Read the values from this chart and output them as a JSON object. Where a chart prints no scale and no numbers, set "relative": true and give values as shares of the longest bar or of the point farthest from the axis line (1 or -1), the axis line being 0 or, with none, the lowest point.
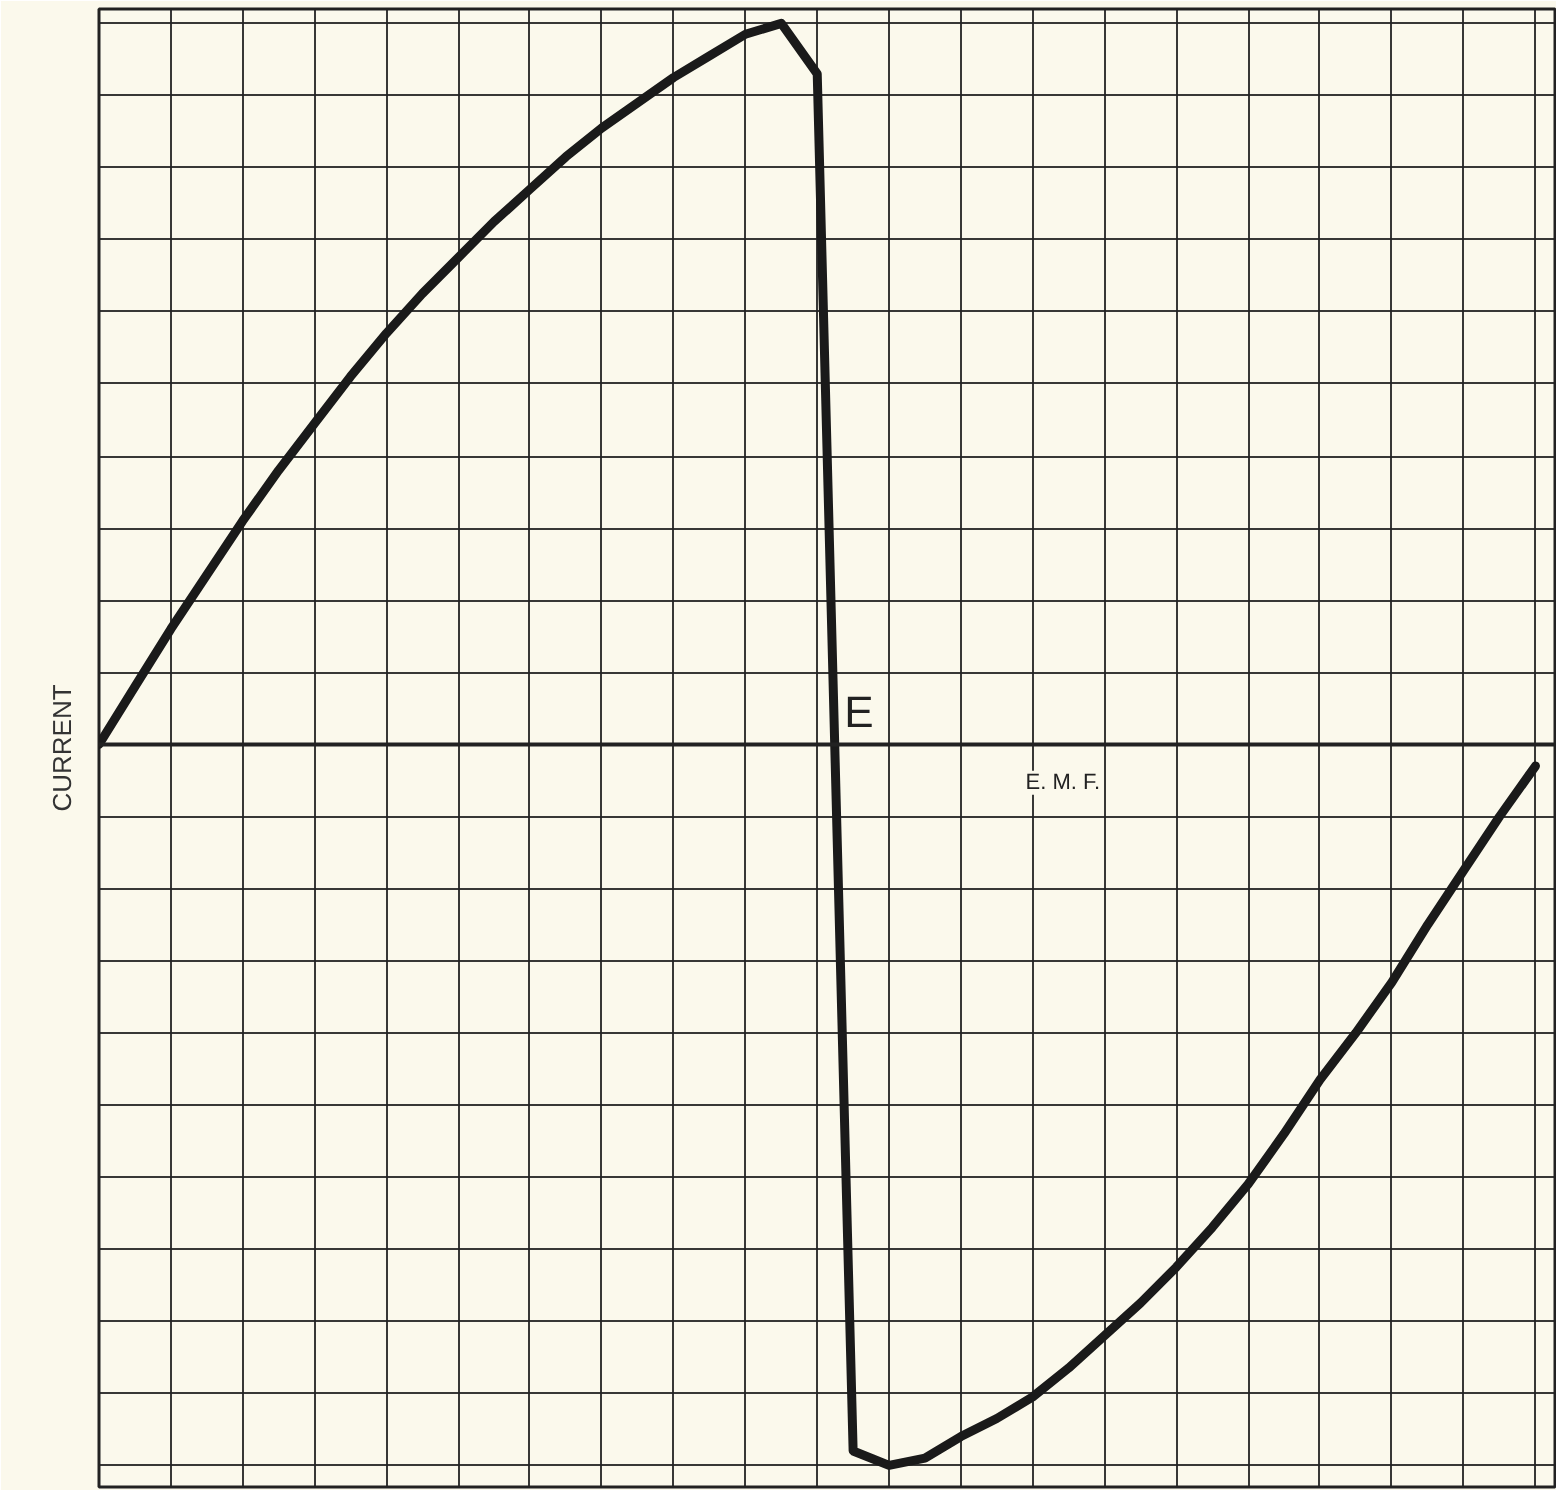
{
  "chart_data": {
    "type": "line",
    "relative": true,
    "ylabel": "CURRENT",
    "annotations": [
      "E",
      "E. M. F."
    ],
    "grid": true,
    "categories": [
      null,
      null,
      null,
      null,
      null,
      null,
      null,
      null,
      null,
      null,
      null,
      null,
      null,
      null,
      null,
      null,
      null,
      null,
      null,
      null,
      null,
      null,
      null,
      null,
      null,
      null,
      null,
      null,
      null,
      null,
      null,
      null,
      null,
      null,
      null,
      null,
      null,
      null,
      null,
      null,
      null
    ],
    "series": [
      {
        "color": "#1a1a1a",
        "values": [
          0,
          0.08,
          0.16,
          0.235,
          0.31,
          0.38,
          0.445,
          0.51,
          0.57,
          0.625,
          0.675,
          0.725,
          0.77,
          0.815,
          0.855,
          0.89,
          0.925,
          0.955,
          0.985,
          1.0,
          0.93,
          -0.98,
          -1.0,
          -0.99,
          -0.96,
          -0.935,
          -0.905,
          -0.865,
          -0.82,
          -0.775,
          -0.725,
          -0.67,
          -0.61,
          -0.54,
          -0.465,
          -0.4,
          -0.33,
          -0.25,
          -0.175,
          -0.1,
          -0.03
        ]
      }
    ],
    "line_style": "solid",
    "marker": "none"
  }
}
